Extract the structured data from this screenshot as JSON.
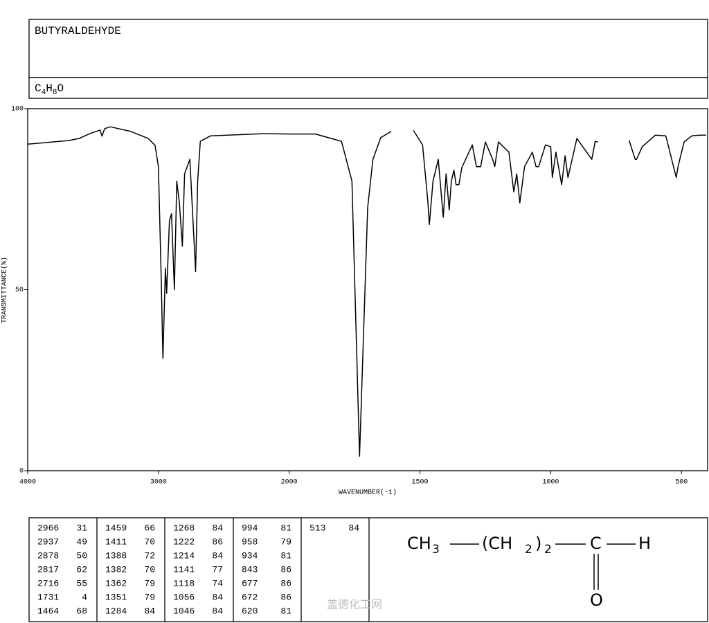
{
  "header": {
    "title": "BUTYRALDEHYDE",
    "formula": [
      "C",
      "4",
      "H",
      "8",
      "O"
    ]
  },
  "chart_data": {
    "type": "line",
    "color": "#000000",
    "x_label": "WAVENUMBER(-1)",
    "y_label": "TRANSMITTANCE(%)",
    "xlim": [
      4000,
      400
    ],
    "ylim": [
      0,
      100
    ],
    "xticks": [
      4000,
      3000,
      2000,
      1500,
      1000,
      500
    ],
    "yticks": [
      0,
      50,
      100
    ],
    "x_scale_change": {
      "at": 2000,
      "factor": 2
    },
    "x": [
      4000,
      3684,
      3605,
      3526,
      3447,
      3432,
      3411,
      3368,
      3211,
      3079,
      3026,
      3000,
      2979,
      2966,
      2947,
      2937,
      2916,
      2900,
      2878,
      2860,
      2840,
      2817,
      2800,
      2760,
      2716,
      2700,
      2680,
      2600,
      2200,
      2000,
      1900,
      1800,
      1760,
      1731,
      1700,
      1680,
      1650,
      1610,
      null,
      1525,
      1490,
      1470,
      1464,
      1450,
      1430,
      1411,
      1400,
      1388,
      1380,
      1370,
      1362,
      1351,
      1340,
      1300,
      1284,
      1268,
      1250,
      1222,
      1214,
      1200,
      1160,
      1141,
      1130,
      1118,
      1100,
      1070,
      1056,
      1046,
      1020,
      1000,
      994,
      980,
      958,
      945,
      934,
      900,
      843,
      830,
      820,
      null,
      700,
      677,
      672,
      650,
      600,
      560,
      520,
      513,
      490,
      460,
      430,
      406
    ],
    "values": [
      90.2,
      91.2,
      91.8,
      93.1,
      94.1,
      92.4,
      94.5,
      95,
      93.7,
      91.8,
      89.9,
      84,
      53.5,
      31,
      56,
      49,
      69,
      71,
      50,
      80,
      74,
      62,
      82,
      86,
      55,
      80,
      91,
      92.5,
      93.1,
      93,
      93,
      91,
      80,
      4,
      72.6,
      86,
      92,
      93.7,
      null,
      94,
      90,
      74.5,
      68,
      80,
      86,
      70,
      82,
      72,
      80,
      83,
      79,
      79,
      83.7,
      90,
      84,
      84,
      90.8,
      86,
      84,
      90.8,
      88,
      77,
      82,
      74,
      84,
      88,
      84,
      84,
      90,
      89.5,
      81,
      88,
      79,
      87,
      81,
      91.8,
      86,
      91,
      90.8,
      null,
      91.2,
      86,
      86,
      89.5,
      92.7,
      92.5,
      81,
      84,
      90.8,
      92.5,
      92.7,
      92.7
    ]
  },
  "peak_table": {
    "columns": [
      [
        [
          2966,
          31
        ],
        [
          2937,
          49
        ],
        [
          2878,
          50
        ],
        [
          2817,
          62
        ],
        [
          2716,
          55
        ],
        [
          1731,
          4
        ],
        [
          1464,
          68
        ]
      ],
      [
        [
          1459,
          66
        ],
        [
          1411,
          70
        ],
        [
          1388,
          72
        ],
        [
          1382,
          70
        ],
        [
          1362,
          79
        ],
        [
          1351,
          79
        ],
        [
          1284,
          84
        ]
      ],
      [
        [
          1268,
          84
        ],
        [
          1222,
          86
        ],
        [
          1214,
          84
        ],
        [
          1141,
          77
        ],
        [
          1118,
          74
        ],
        [
          1056,
          84
        ],
        [
          1046,
          84
        ]
      ],
      [
        [
          994,
          81
        ],
        [
          958,
          79
        ],
        [
          934,
          81
        ],
        [
          843,
          86
        ],
        [
          677,
          86
        ],
        [
          672,
          86
        ],
        [
          620,
          81
        ]
      ],
      [
        [
          513,
          84
        ]
      ]
    ]
  },
  "structure": {
    "parts": [
      "CH",
      "3",
      "(CH",
      "2",
      ")",
      "2",
      "C",
      "H",
      "O"
    ]
  },
  "watermark": "盖德化工网"
}
